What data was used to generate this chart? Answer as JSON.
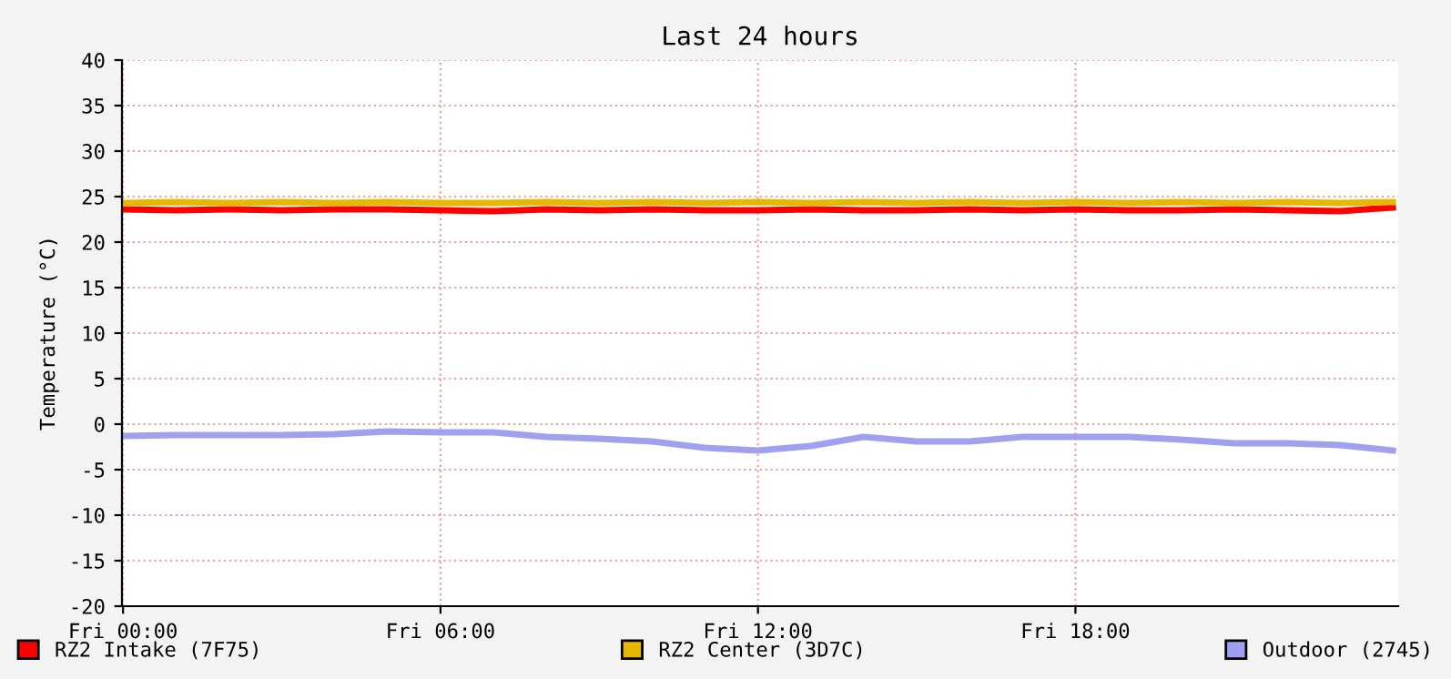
{
  "chart_data": {
    "type": "line",
    "title": "Last 24 hours",
    "ylabel": "Temperature (°C)",
    "categories": [
      "Fri 00:00",
      null,
      null,
      null,
      null,
      null,
      "Fri 06:00",
      null,
      null,
      null,
      null,
      null,
      "Fri 12:00",
      null,
      null,
      null,
      null,
      null,
      "Fri 18:00",
      null,
      null,
      null,
      null,
      null,
      null
    ],
    "series": [
      {
        "name": "RZ2 Intake (7F75)",
        "color": "#ff0000",
        "values": [
          23.6,
          23.5,
          23.6,
          23.5,
          23.6,
          23.6,
          23.5,
          23.4,
          23.6,
          23.5,
          23.6,
          23.5,
          23.5,
          23.6,
          23.5,
          23.5,
          23.6,
          23.5,
          23.6,
          23.5,
          23.5,
          23.6,
          23.5,
          23.4,
          23.8
        ]
      },
      {
        "name": "RZ2 Center (3D7C)",
        "color": "#e8b800",
        "values": [
          24.3,
          24.4,
          24.3,
          24.4,
          24.3,
          24.4,
          24.3,
          24.3,
          24.4,
          24.3,
          24.4,
          24.3,
          24.4,
          24.3,
          24.4,
          24.3,
          24.4,
          24.3,
          24.4,
          24.3,
          24.4,
          24.3,
          24.4,
          24.3,
          24.4
        ]
      },
      {
        "name": "Outdoor (2745)",
        "color": "#a0a0f0",
        "values": [
          -1.3,
          -1.2,
          -1.2,
          -1.2,
          -1.1,
          -0.8,
          -0.9,
          -0.9,
          -1.4,
          -1.6,
          -1.9,
          -2.6,
          -2.9,
          -2.4,
          -1.4,
          -1.9,
          -1.9,
          -1.4,
          -1.4,
          -1.4,
          -1.7,
          -2.1,
          -2.1,
          -2.3,
          -2.9
        ]
      }
    ],
    "ylim": [
      -20,
      40
    ],
    "yticks": [
      -20,
      -15,
      -10,
      -5,
      0,
      5,
      10,
      15,
      20,
      25,
      30,
      35,
      40
    ],
    "grid": true,
    "legend": "bottom",
    "line_style": "solid"
  }
}
